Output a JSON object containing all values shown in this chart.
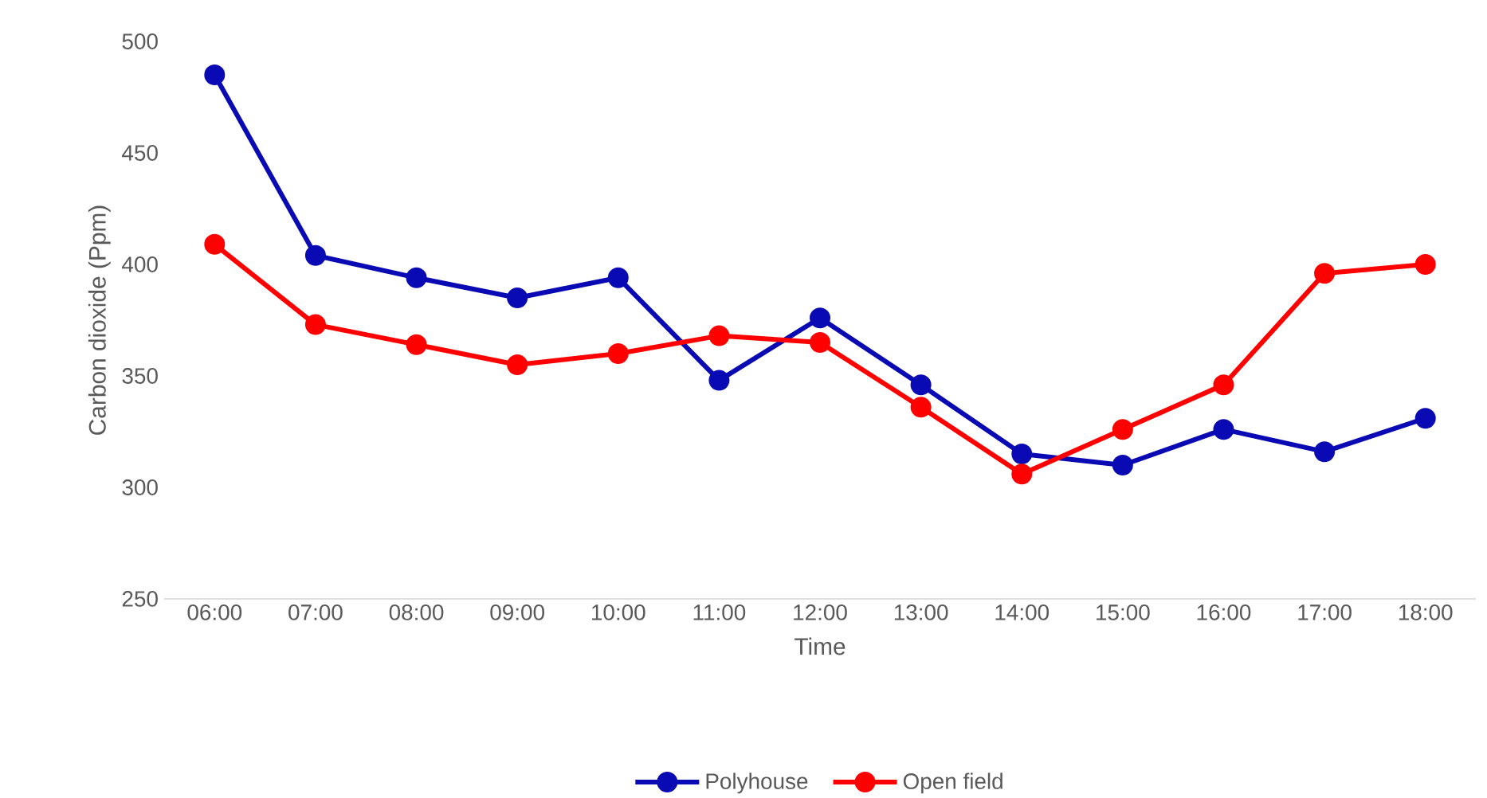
{
  "chart_data": {
    "type": "line",
    "xlabel": "Time",
    "ylabel": "Carbon dioxide (Ppm)",
    "categories": [
      "06:00",
      "07:00",
      "08:00",
      "09:00",
      "10:00",
      "11:00",
      "12:00",
      "13:00",
      "14:00",
      "15:00",
      "16:00",
      "17:00",
      "18:00"
    ],
    "series": [
      {
        "name": "Polyhouse",
        "color": "#0a0ab4",
        "values": [
          485,
          404,
          394,
          385,
          394,
          348,
          376,
          346,
          315,
          310,
          326,
          316,
          331
        ]
      },
      {
        "name": "Open field",
        "color": "#ff0000",
        "values": [
          409,
          373,
          364,
          355,
          360,
          368,
          365,
          336,
          306,
          326,
          346,
          396,
          400
        ]
      }
    ],
    "ylim": [
      250,
      500
    ],
    "yticks": [
      250,
      300,
      350,
      400,
      450,
      500
    ],
    "grid": false,
    "legend": "bottom",
    "marker": "circle",
    "line_style": "solid"
  }
}
